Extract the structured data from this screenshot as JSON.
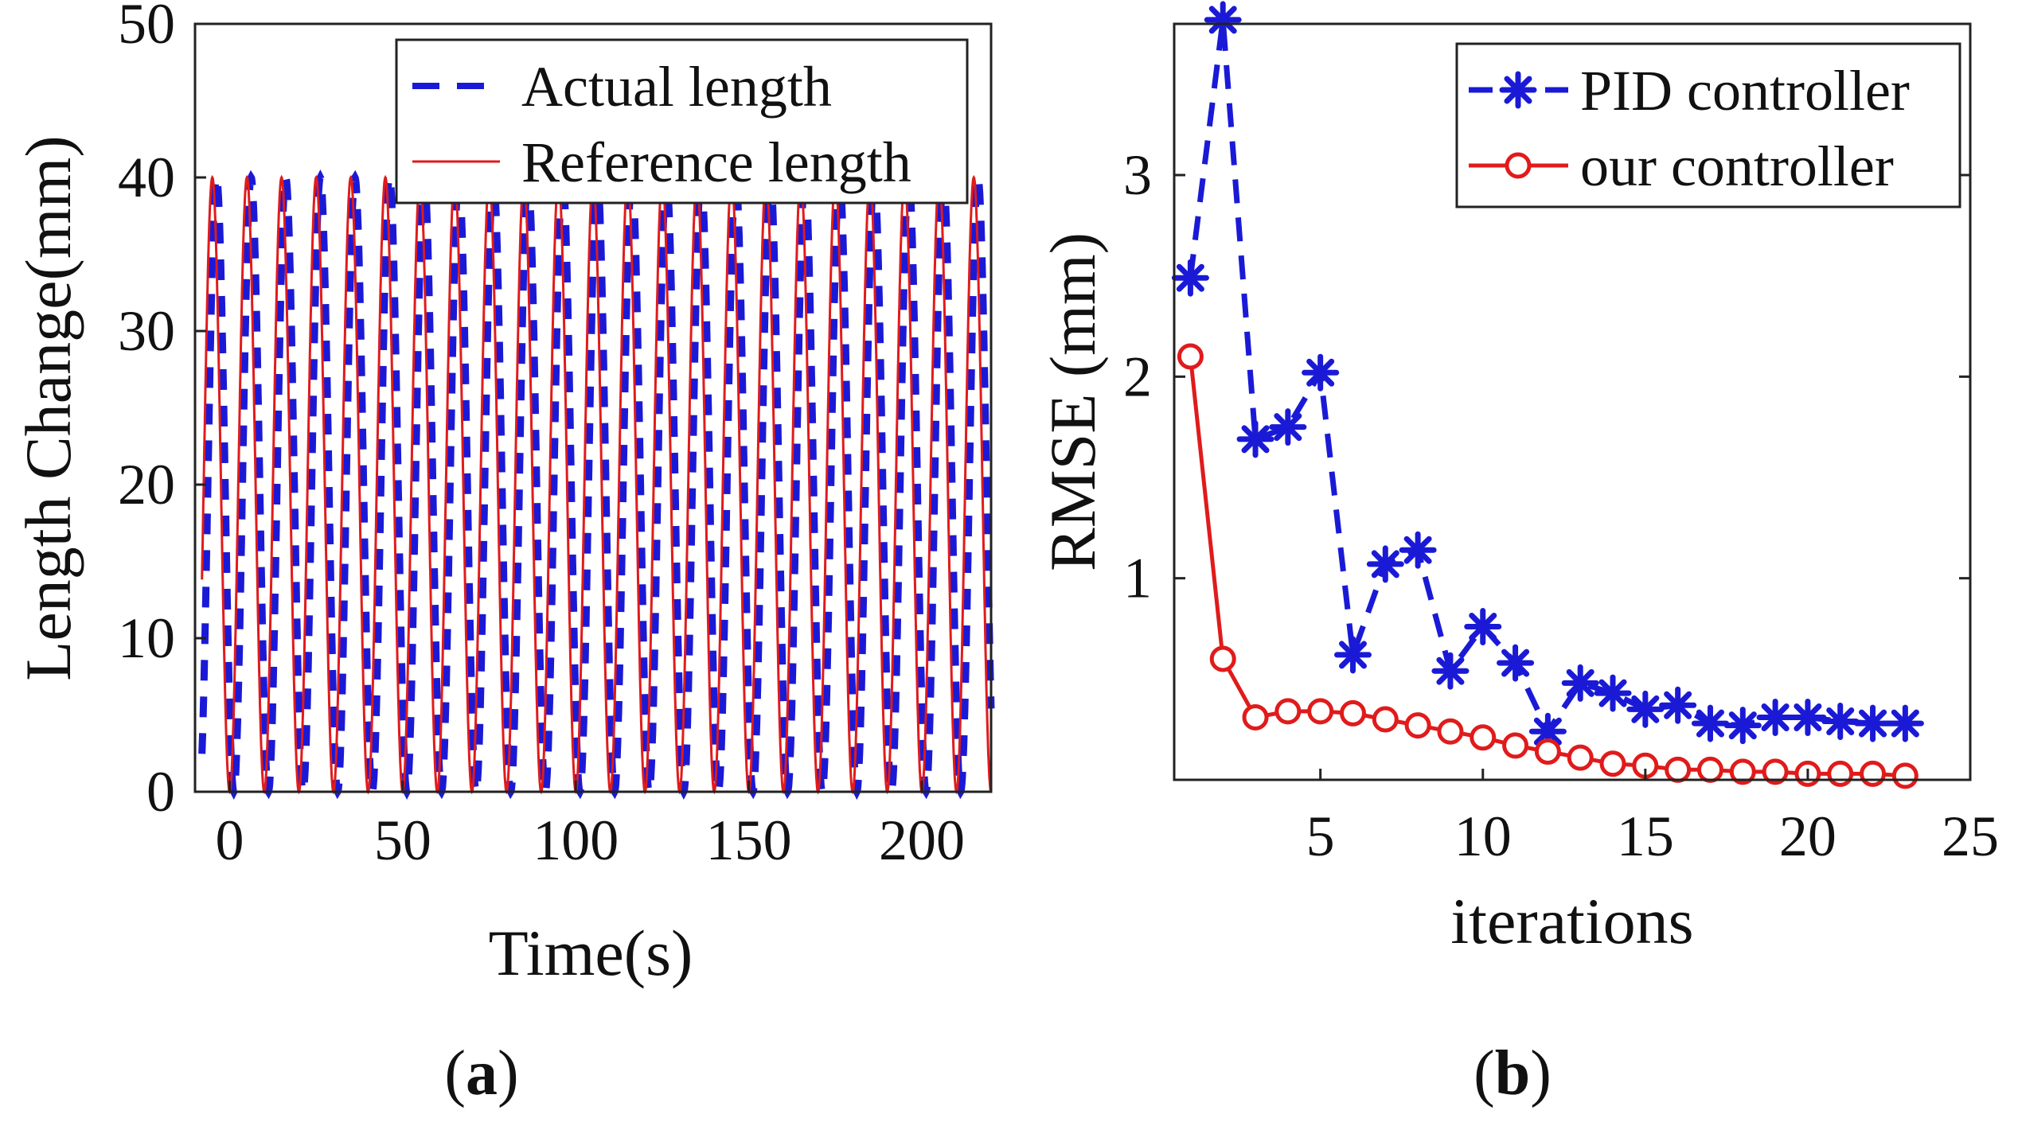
{
  "chart_data": [
    {
      "type": "line",
      "panel": "a",
      "caption": {
        "open": "(",
        "letter": "a",
        "close": ")"
      },
      "xlabel": "Time(s)",
      "ylabel": "Length Change(mm)",
      "xlim": [
        -10,
        220
      ],
      "ylim": [
        0,
        50
      ],
      "xticks": [
        0,
        50,
        100,
        150,
        200
      ],
      "yticks": [
        0,
        10,
        20,
        30,
        40,
        50
      ],
      "legend_position": "top-right",
      "signal": {
        "amplitude_mm": 20,
        "offset_mm": 20,
        "period_s": 10,
        "t_start": -8,
        "t_end": 220
      },
      "series": [
        {
          "name": "Actual length",
          "style": "dashed",
          "color": "#1a1ad6",
          "phase_lag_s": 1.2
        },
        {
          "name": "Reference length",
          "style": "solid",
          "color": "#e01b1b",
          "phase_lag_s": 0
        }
      ]
    },
    {
      "type": "line",
      "panel": "b",
      "caption": {
        "open": "(",
        "letter": "b",
        "close": ")"
      },
      "xlabel": "iterations",
      "ylabel": "RMSE (mm)",
      "xlim": [
        0.5,
        25
      ],
      "ylim": [
        0,
        3.75
      ],
      "xticks": [
        5,
        10,
        15,
        20,
        25
      ],
      "yticks": [
        1,
        2,
        3
      ],
      "legend_position": "top-right",
      "x": [
        1,
        2,
        3,
        4,
        5,
        6,
        7,
        8,
        9,
        10,
        11,
        12,
        13,
        14,
        15,
        16,
        17,
        18,
        19,
        20,
        21,
        22,
        23
      ],
      "series": [
        {
          "name": "PID controller",
          "style": "dashed",
          "marker": "asterisk",
          "color": "#1a1ad6",
          "values": [
            2.49,
            3.77,
            1.69,
            1.75,
            2.02,
            0.62,
            1.07,
            1.14,
            0.54,
            0.76,
            0.58,
            0.24,
            0.48,
            0.43,
            0.35,
            0.37,
            0.28,
            0.27,
            0.31,
            0.31,
            0.29,
            0.28,
            0.28
          ]
        },
        {
          "name": "our controller",
          "style": "solid",
          "marker": "circle",
          "color": "#e01b1b",
          "values": [
            2.1,
            0.6,
            0.31,
            0.34,
            0.34,
            0.33,
            0.3,
            0.27,
            0.24,
            0.21,
            0.17,
            0.14,
            0.11,
            0.08,
            0.07,
            0.05,
            0.05,
            0.04,
            0.04,
            0.03,
            0.03,
            0.03,
            0.02
          ]
        }
      ]
    }
  ]
}
